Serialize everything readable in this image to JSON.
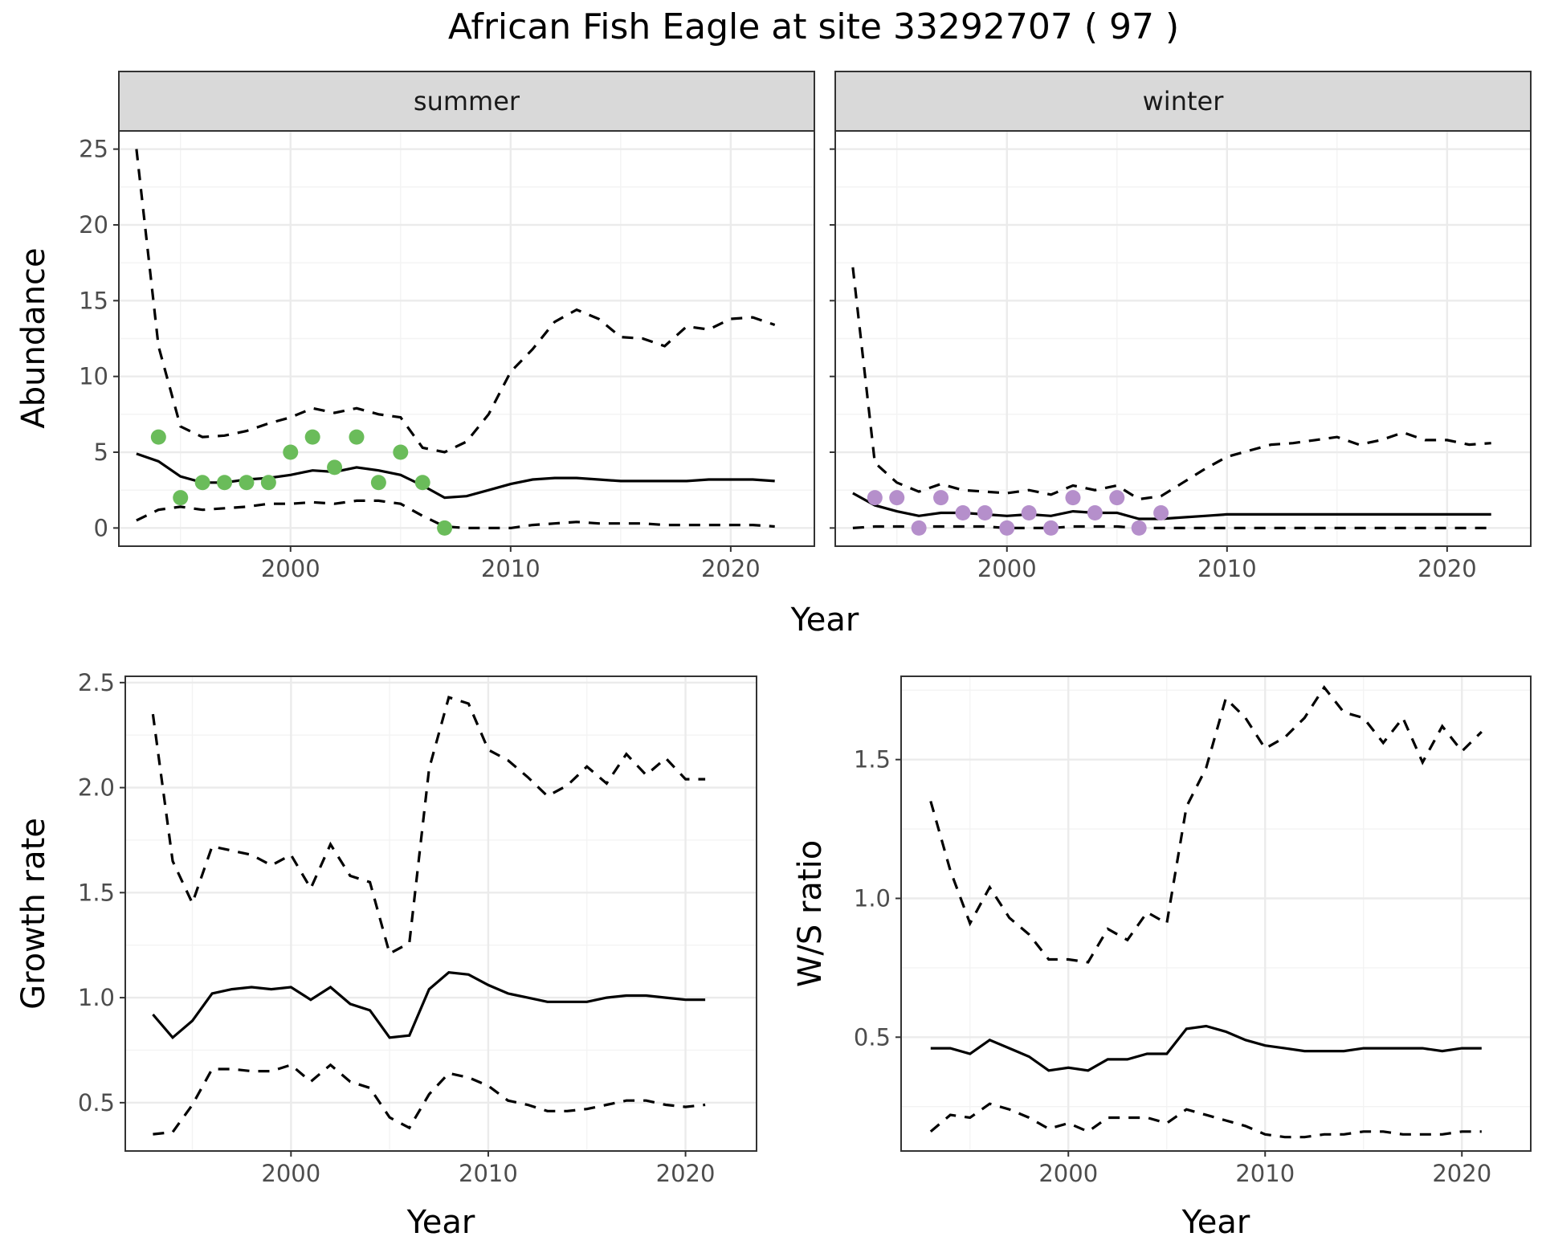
{
  "figure_title": "African Fish Eagle at site 33292707 ( 97 )",
  "colors": {
    "summer_points": "#6abc5a",
    "winter_points": "#b58fcb",
    "line": "#000000"
  },
  "chart_data": [
    {
      "id": "abundance",
      "type": "line",
      "facets": [
        "summer",
        "winter"
      ],
      "xlabel": "Year",
      "ylabel": "Abundance",
      "xlim": [
        1992.2,
        2023.8
      ],
      "ylim": [
        -1.2,
        26.2
      ],
      "xticks": [
        2000,
        2010,
        2020
      ],
      "yticks": [
        0,
        5,
        10,
        15,
        20,
        25
      ],
      "grid": true,
      "x": [
        1993,
        1994,
        1995,
        1996,
        1997,
        1998,
        1999,
        2000,
        2001,
        2002,
        2003,
        2004,
        2005,
        2006,
        2007,
        2008,
        2009,
        2010,
        2011,
        2012,
        2013,
        2014,
        2015,
        2016,
        2017,
        2018,
        2019,
        2020,
        2021,
        2022
      ],
      "panels": [
        {
          "facet": "summer",
          "point_color": "#6abc5a",
          "mean": [
            4.9,
            4.4,
            3.4,
            3.0,
            3.0,
            3.2,
            3.3,
            3.5,
            3.8,
            3.7,
            4.0,
            3.8,
            3.5,
            2.8,
            2.0,
            2.1,
            2.5,
            2.9,
            3.2,
            3.3,
            3.3,
            3.2,
            3.1,
            3.1,
            3.1,
            3.1,
            3.2,
            3.2,
            3.2,
            3.1
          ],
          "upper": [
            25.0,
            12.0,
            6.7,
            6.0,
            6.1,
            6.4,
            6.9,
            7.3,
            7.9,
            7.6,
            7.9,
            7.5,
            7.3,
            5.3,
            5.0,
            5.7,
            7.5,
            10.3,
            11.8,
            13.6,
            14.4,
            13.8,
            12.6,
            12.5,
            12.0,
            13.3,
            13.1,
            13.8,
            13.9,
            13.4
          ],
          "lower": [
            0.5,
            1.2,
            1.4,
            1.2,
            1.3,
            1.4,
            1.6,
            1.6,
            1.7,
            1.6,
            1.8,
            1.8,
            1.6,
            0.8,
            0.1,
            0.0,
            0.0,
            0.0,
            0.2,
            0.3,
            0.4,
            0.3,
            0.3,
            0.3,
            0.2,
            0.2,
            0.2,
            0.2,
            0.2,
            0.1
          ],
          "points": [
            {
              "x": 1994,
              "y": 6
            },
            {
              "x": 1995,
              "y": 2
            },
            {
              "x": 1996,
              "y": 3
            },
            {
              "x": 1997,
              "y": 3
            },
            {
              "x": 1998,
              "y": 3
            },
            {
              "x": 1999,
              "y": 3
            },
            {
              "x": 2000,
              "y": 5
            },
            {
              "x": 2001,
              "y": 6
            },
            {
              "x": 2002,
              "y": 4
            },
            {
              "x": 2003,
              "y": 6
            },
            {
              "x": 2004,
              "y": 3
            },
            {
              "x": 2005,
              "y": 5
            },
            {
              "x": 2006,
              "y": 3
            },
            {
              "x": 2007,
              "y": 0
            }
          ]
        },
        {
          "facet": "winter",
          "point_color": "#b58fcb",
          "mean": [
            2.3,
            1.5,
            1.1,
            0.8,
            1.0,
            1.0,
            0.9,
            0.8,
            0.9,
            0.8,
            1.1,
            1.0,
            1.0,
            0.6,
            0.6,
            0.7,
            0.8,
            0.9,
            0.9,
            0.9,
            0.9,
            0.9,
            0.9,
            0.9,
            0.9,
            0.9,
            0.9,
            0.9,
            0.9,
            0.9
          ],
          "upper": [
            17.2,
            4.3,
            3.0,
            2.4,
            2.9,
            2.5,
            2.4,
            2.3,
            2.5,
            2.2,
            2.8,
            2.5,
            2.8,
            1.9,
            2.1,
            3.0,
            3.9,
            4.7,
            5.1,
            5.5,
            5.6,
            5.8,
            6.0,
            5.5,
            5.8,
            6.3,
            5.8,
            5.8,
            5.5,
            5.6
          ],
          "lower": [
            0.0,
            0.1,
            0.1,
            0.1,
            0.1,
            0.1,
            0.1,
            0.0,
            0.0,
            0.0,
            0.1,
            0.1,
            0.1,
            0.0,
            0.0,
            0.0,
            0.0,
            0.0,
            0.0,
            0.0,
            0.0,
            0.0,
            0.0,
            0.0,
            0.0,
            0.0,
            0.0,
            0.0,
            0.0,
            0.0
          ],
          "points": [
            {
              "x": 1994,
              "y": 2
            },
            {
              "x": 1995,
              "y": 2
            },
            {
              "x": 1996,
              "y": 0
            },
            {
              "x": 1997,
              "y": 2
            },
            {
              "x": 1998,
              "y": 1
            },
            {
              "x": 1999,
              "y": 1
            },
            {
              "x": 2000,
              "y": 0
            },
            {
              "x": 2001,
              "y": 1
            },
            {
              "x": 2002,
              "y": 0
            },
            {
              "x": 2003,
              "y": 2
            },
            {
              "x": 2004,
              "y": 1
            },
            {
              "x": 2005,
              "y": 2
            },
            {
              "x": 2006,
              "y": 0
            },
            {
              "x": 2007,
              "y": 1
            }
          ]
        }
      ]
    },
    {
      "id": "growth",
      "type": "line",
      "xlabel": "Year",
      "ylabel": "Growth rate",
      "xlim": [
        1991.6,
        2023.6
      ],
      "ylim": [
        0.27,
        2.53
      ],
      "xticks": [
        2000,
        2010,
        2020
      ],
      "yticks": [
        0.5,
        1.0,
        1.5,
        2.0,
        2.5
      ],
      "ytick_labels": [
        "0.5",
        "1.0",
        "1.5",
        "2.0",
        "2.5"
      ],
      "grid": true,
      "x": [
        1993,
        1994,
        1995,
        1996,
        1997,
        1998,
        1999,
        2000,
        2001,
        2002,
        2003,
        2004,
        2005,
        2006,
        2007,
        2008,
        2009,
        2010,
        2011,
        2012,
        2013,
        2014,
        2015,
        2016,
        2017,
        2018,
        2019,
        2020,
        2021
      ],
      "mean": [
        0.92,
        0.81,
        0.89,
        1.02,
        1.04,
        1.05,
        1.04,
        1.05,
        0.99,
        1.05,
        0.97,
        0.94,
        0.81,
        0.82,
        1.04,
        1.12,
        1.11,
        1.06,
        1.02,
        1.0,
        0.98,
        0.98,
        0.98,
        1.0,
        1.01,
        1.01,
        1.0,
        0.99,
        0.99
      ],
      "upper": [
        2.35,
        1.65,
        1.45,
        1.72,
        1.7,
        1.68,
        1.63,
        1.68,
        1.52,
        1.73,
        1.58,
        1.55,
        1.21,
        1.26,
        2.09,
        2.43,
        2.4,
        2.18,
        2.13,
        2.05,
        1.96,
        2.01,
        2.1,
        2.02,
        2.16,
        2.06,
        2.14,
        2.04,
        2.04
      ],
      "lower": [
        0.35,
        0.36,
        0.49,
        0.66,
        0.66,
        0.65,
        0.65,
        0.68,
        0.6,
        0.68,
        0.6,
        0.57,
        0.43,
        0.38,
        0.54,
        0.64,
        0.62,
        0.58,
        0.51,
        0.49,
        0.46,
        0.46,
        0.47,
        0.49,
        0.51,
        0.51,
        0.49,
        0.48,
        0.49
      ]
    },
    {
      "id": "ws_ratio",
      "type": "line",
      "xlabel": "Year",
      "ylabel": "W/S ratio",
      "xlim": [
        1991.5,
        2023.5
      ],
      "ylim": [
        0.09,
        1.8
      ],
      "xticks": [
        2000,
        2010,
        2020
      ],
      "yticks": [
        0.5,
        1.0,
        1.5
      ],
      "ytick_labels": [
        "0.5",
        "1.0",
        "1.5"
      ],
      "grid": true,
      "x": [
        1993,
        1994,
        1995,
        1996,
        1997,
        1998,
        1999,
        2000,
        2001,
        2002,
        2003,
        2004,
        2005,
        2006,
        2007,
        2008,
        2009,
        2010,
        2011,
        2012,
        2013,
        2014,
        2015,
        2016,
        2017,
        2018,
        2019,
        2020,
        2021
      ],
      "mean": [
        0.46,
        0.46,
        0.44,
        0.49,
        0.46,
        0.43,
        0.38,
        0.39,
        0.38,
        0.42,
        0.42,
        0.44,
        0.44,
        0.53,
        0.54,
        0.52,
        0.49,
        0.47,
        0.46,
        0.45,
        0.45,
        0.45,
        0.46,
        0.46,
        0.46,
        0.46,
        0.45,
        0.46,
        0.46
      ],
      "upper": [
        1.35,
        1.1,
        0.91,
        1.04,
        0.93,
        0.87,
        0.78,
        0.78,
        0.77,
        0.89,
        0.85,
        0.95,
        0.91,
        1.33,
        1.47,
        1.72,
        1.65,
        1.54,
        1.58,
        1.65,
        1.76,
        1.67,
        1.65,
        1.56,
        1.65,
        1.49,
        1.62,
        1.53,
        1.6
      ],
      "lower": [
        0.16,
        0.22,
        0.21,
        0.26,
        0.24,
        0.21,
        0.17,
        0.19,
        0.16,
        0.21,
        0.21,
        0.21,
        0.19,
        0.24,
        0.22,
        0.2,
        0.18,
        0.15,
        0.14,
        0.14,
        0.15,
        0.15,
        0.16,
        0.16,
        0.15,
        0.15,
        0.15,
        0.16,
        0.16
      ]
    }
  ]
}
